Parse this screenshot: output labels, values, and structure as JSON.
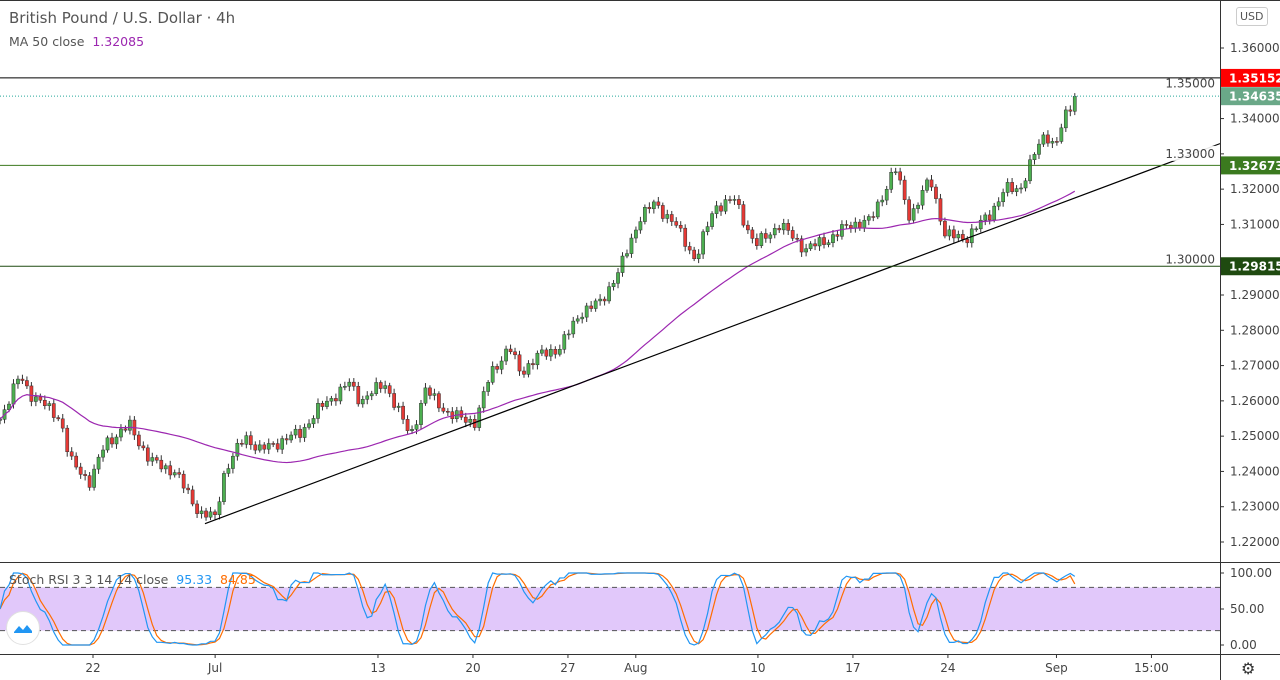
{
  "header": {
    "title": "British Pound / U.S. Dollar · 4h",
    "ma_label": "MA 50 close",
    "ma_value": "1.32085",
    "stoch_label": "Stoch RSI 3 3 14 14 close",
    "stoch_k": "95.33",
    "stoch_d": "84.85",
    "currency": "USD"
  },
  "colors": {
    "up": "#26a69a",
    "down": "#ef5350",
    "candle_up": "#4caf50",
    "candle_down": "#e53935",
    "ma": "#9c27b0",
    "k": "#2196f3",
    "d": "#ff6d00",
    "band": "#e1c8fa"
  },
  "chart_data": {
    "type": "candlestick",
    "title": "British Pound / U.S. Dollar · 4h",
    "ylim": [
      1.22,
      1.37
    ],
    "y_ticks": [
      "1.36000",
      "1.35000",
      "1.34000",
      "1.33000",
      "1.32000",
      "1.31000",
      "1.30000",
      "1.29000",
      "1.28000",
      "1.27000",
      "1.26000",
      "1.25000",
      "1.24000",
      "1.23000",
      "1.22000"
    ],
    "x_ticks": [
      {
        "label": "22",
        "day": 0
      },
      {
        "label": "Jul",
        "day": 9
      },
      {
        "label": "13",
        "day": 21
      },
      {
        "label": "20",
        "day": 28
      },
      {
        "label": "27",
        "day": 35
      },
      {
        "label": "Aug",
        "day": 40
      },
      {
        "label": "10",
        "day": 49
      },
      {
        "label": "17",
        "day": 56
      },
      {
        "label": "24",
        "day": 63
      },
      {
        "label": "Sep",
        "day": 71
      },
      {
        "label": "15:00",
        "day": 78
      }
    ],
    "price_path_day_close": [
      [
        -6.85,
        1.255
      ],
      [
        -5.4,
        1.267
      ],
      [
        -4.6,
        1.262
      ],
      [
        -2.4,
        1.255
      ],
      [
        -1.7,
        1.243
      ],
      [
        -0.2,
        1.237
      ],
      [
        0.9,
        1.248
      ],
      [
        2.7,
        1.253
      ],
      [
        4.2,
        1.243
      ],
      [
        6.0,
        1.24
      ],
      [
        7.9,
        1.228
      ],
      [
        9.0,
        1.227
      ],
      [
        9.7,
        1.24
      ],
      [
        11.2,
        1.25
      ],
      [
        12.3,
        1.246
      ],
      [
        15.3,
        1.251
      ],
      [
        16.7,
        1.258
      ],
      [
        18.9,
        1.265
      ],
      [
        19.7,
        1.26
      ],
      [
        21.5,
        1.265
      ],
      [
        23.4,
        1.25
      ],
      [
        24.5,
        1.263
      ],
      [
        26.3,
        1.256
      ],
      [
        28.2,
        1.254
      ],
      [
        29.3,
        1.268
      ],
      [
        30.7,
        1.275
      ],
      [
        31.5,
        1.268
      ],
      [
        32.9,
        1.273
      ],
      [
        34.4,
        1.275
      ],
      [
        35.9,
        1.285
      ],
      [
        37.4,
        1.288
      ],
      [
        38.8,
        1.297
      ],
      [
        40.3,
        1.312
      ],
      [
        41.4,
        1.316
      ],
      [
        42.9,
        1.31
      ],
      [
        44.4,
        1.3
      ],
      [
        45.8,
        1.315
      ],
      [
        47.3,
        1.317
      ],
      [
        48.8,
        1.304
      ],
      [
        50.6,
        1.31
      ],
      [
        52.5,
        1.303
      ],
      [
        54.3,
        1.306
      ],
      [
        55.8,
        1.31
      ],
      [
        57.3,
        1.311
      ],
      [
        59.1,
        1.326
      ],
      [
        60.2,
        1.312
      ],
      [
        61.7,
        1.323
      ],
      [
        62.8,
        1.307
      ],
      [
        64.3,
        1.306
      ],
      [
        66.1,
        1.313
      ],
      [
        67.2,
        1.32
      ],
      [
        68.3,
        1.32
      ],
      [
        69.4,
        1.33
      ],
      [
        70.2,
        1.336
      ],
      [
        70.9,
        1.332
      ],
      [
        71.6,
        1.34
      ],
      [
        72.4,
        1.3463
      ]
    ],
    "levels": [
      {
        "price": 1.35152,
        "label": "1.35152",
        "bg": "#ff0000",
        "line": "#000000"
      },
      {
        "price": 1.34635,
        "label": "1.34635",
        "bg": "#6aa888",
        "line": "#26a69a",
        "dotted": true
      },
      {
        "price": 1.32673,
        "label": "1.32673",
        "bg": "#3b7a1f",
        "line": "#3b7a1f"
      },
      {
        "price": 1.29815,
        "label": "1.29815",
        "bg": "#1f4a10",
        "line": "#1f4a10"
      }
    ],
    "trendline": [
      [
        8.25,
        1.2252
      ],
      [
        83.05,
        1.3329
      ]
    ],
    "ma_period": 50,
    "stoch": {
      "ylim": [
        0,
        100
      ],
      "ticks": [
        "100.00",
        "50.00",
        "0.00"
      ],
      "upper": 80,
      "lower": 20,
      "k": 95.33,
      "d": 84.85
    }
  }
}
